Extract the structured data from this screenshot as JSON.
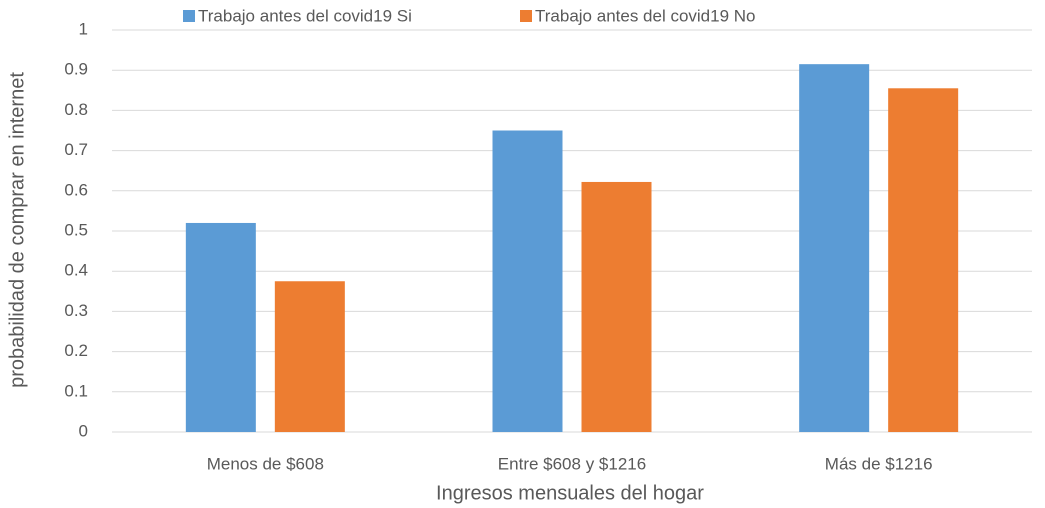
{
  "chart_data": {
    "type": "bar",
    "xlabel": "Ingresos mensuales del hogar",
    "ylabel": "probabilidad de comprar en internet",
    "categories": [
      "Menos de $608",
      "Entre $608 y $1216",
      "Más de $1216"
    ],
    "series": [
      {
        "name": "Trabajo antes del covid19 Si",
        "color": "#5b9bd5",
        "values": [
          0.52,
          0.75,
          0.915
        ]
      },
      {
        "name": "Trabajo antes del covid19 No",
        "color": "#ed7d31",
        "values": [
          0.375,
          0.622,
          0.855
        ]
      }
    ],
    "ylim": [
      0,
      1
    ],
    "yticks": [
      0,
      0.1,
      0.2,
      0.3,
      0.4,
      0.5,
      0.6,
      0.7,
      0.8,
      0.9,
      1
    ],
    "grid": true,
    "legend": "top"
  }
}
